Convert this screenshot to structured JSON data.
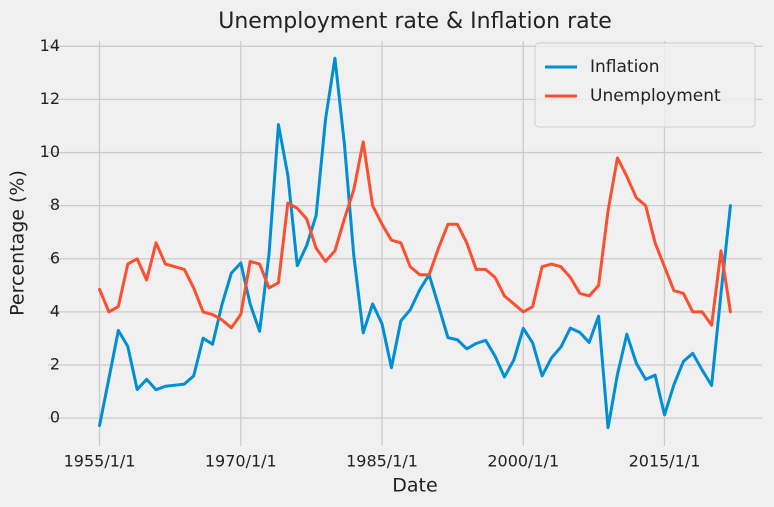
{
  "chart_data": {
    "type": "line",
    "title": "Unemployment rate & Inflation rate",
    "xlabel": "Date",
    "ylabel": "Percentage (%)",
    "x": [
      "1955/1/1",
      "1956/1/1",
      "1957/1/1",
      "1958/1/1",
      "1959/1/1",
      "1960/1/1",
      "1961/1/1",
      "1962/1/1",
      "1963/1/1",
      "1964/1/1",
      "1965/1/1",
      "1966/1/1",
      "1967/1/1",
      "1968/1/1",
      "1969/1/1",
      "1970/1/1",
      "1971/1/1",
      "1972/1/1",
      "1973/1/1",
      "1974/1/1",
      "1975/1/1",
      "1976/1/1",
      "1977/1/1",
      "1978/1/1",
      "1979/1/1",
      "1980/1/1",
      "1981/1/1",
      "1982/1/1",
      "1983/1/1",
      "1984/1/1",
      "1985/1/1",
      "1986/1/1",
      "1987/1/1",
      "1988/1/1",
      "1989/1/1",
      "1990/1/1",
      "1991/1/1",
      "1992/1/1",
      "1993/1/1",
      "1994/1/1",
      "1995/1/1",
      "1996/1/1",
      "1997/1/1",
      "1998/1/1",
      "1999/1/1",
      "2000/1/1",
      "2001/1/1",
      "2002/1/1",
      "2003/1/1",
      "2004/1/1",
      "2005/1/1",
      "2006/1/1",
      "2007/1/1",
      "2008/1/1",
      "2009/1/1",
      "2010/1/1",
      "2011/1/1",
      "2012/1/1",
      "2013/1/1",
      "2014/1/1",
      "2015/1/1",
      "2016/1/1",
      "2017/1/1",
      "2018/1/1",
      "2019/1/1",
      "2020/1/1",
      "2021/1/1",
      "2022/1/1"
    ],
    "series": [
      {
        "name": "Inflation",
        "color": "#008fd5",
        "values": [
          -0.28,
          1.5,
          3.3,
          2.7,
          1.08,
          1.46,
          1.07,
          1.2,
          1.24,
          1.28,
          1.59,
          3.01,
          2.78,
          4.27,
          5.46,
          5.84,
          4.29,
          3.27,
          6.18,
          11.05,
          9.14,
          5.74,
          6.5,
          7.63,
          11.25,
          13.55,
          10.33,
          6.13,
          3.21,
          4.3,
          3.55,
          1.9,
          3.66,
          4.08,
          4.83,
          5.4,
          4.23,
          3.03,
          2.95,
          2.61,
          2.81,
          2.93,
          2.34,
          1.55,
          2.19,
          3.38,
          2.83,
          1.59,
          2.27,
          2.68,
          3.39,
          3.23,
          2.85,
          3.84,
          -0.36,
          1.64,
          3.16,
          2.07,
          1.46,
          1.62,
          0.12,
          1.26,
          2.13,
          2.44,
          1.81,
          1.23,
          4.7,
          8.0
        ]
      },
      {
        "name": "Unemployment",
        "color": "#fc4f30",
        "values": [
          4.85,
          4.0,
          4.2,
          5.8,
          6.0,
          5.2,
          6.6,
          5.8,
          5.7,
          5.6,
          4.9,
          4.0,
          3.9,
          3.7,
          3.4,
          3.9,
          5.9,
          5.8,
          4.9,
          5.1,
          8.1,
          7.9,
          7.5,
          6.4,
          5.9,
          6.3,
          7.5,
          8.6,
          10.4,
          8.0,
          7.3,
          6.7,
          6.6,
          5.7,
          5.4,
          5.4,
          6.4,
          7.3,
          7.3,
          6.6,
          5.6,
          5.6,
          5.3,
          4.6,
          4.3,
          4.0,
          4.2,
          5.7,
          5.8,
          5.7,
          5.3,
          4.7,
          4.6,
          5.0,
          7.8,
          9.8,
          9.1,
          8.3,
          8.0,
          6.6,
          5.7,
          4.8,
          4.7,
          4.0,
          4.0,
          3.5,
          6.3,
          4.0
        ]
      }
    ],
    "xlim": [
      "1951/8/26",
      "2025/5/8"
    ],
    "xticks": [
      "1955/1/1",
      "1970/1/1",
      "1985/1/1",
      "2000/1/1",
      "2015/1/1"
    ],
    "ylim": [
      -1.05,
      14.2
    ],
    "yticks": [
      0,
      2,
      4,
      6,
      8,
      10,
      12,
      14
    ],
    "grid": true,
    "legend": "upper right"
  }
}
